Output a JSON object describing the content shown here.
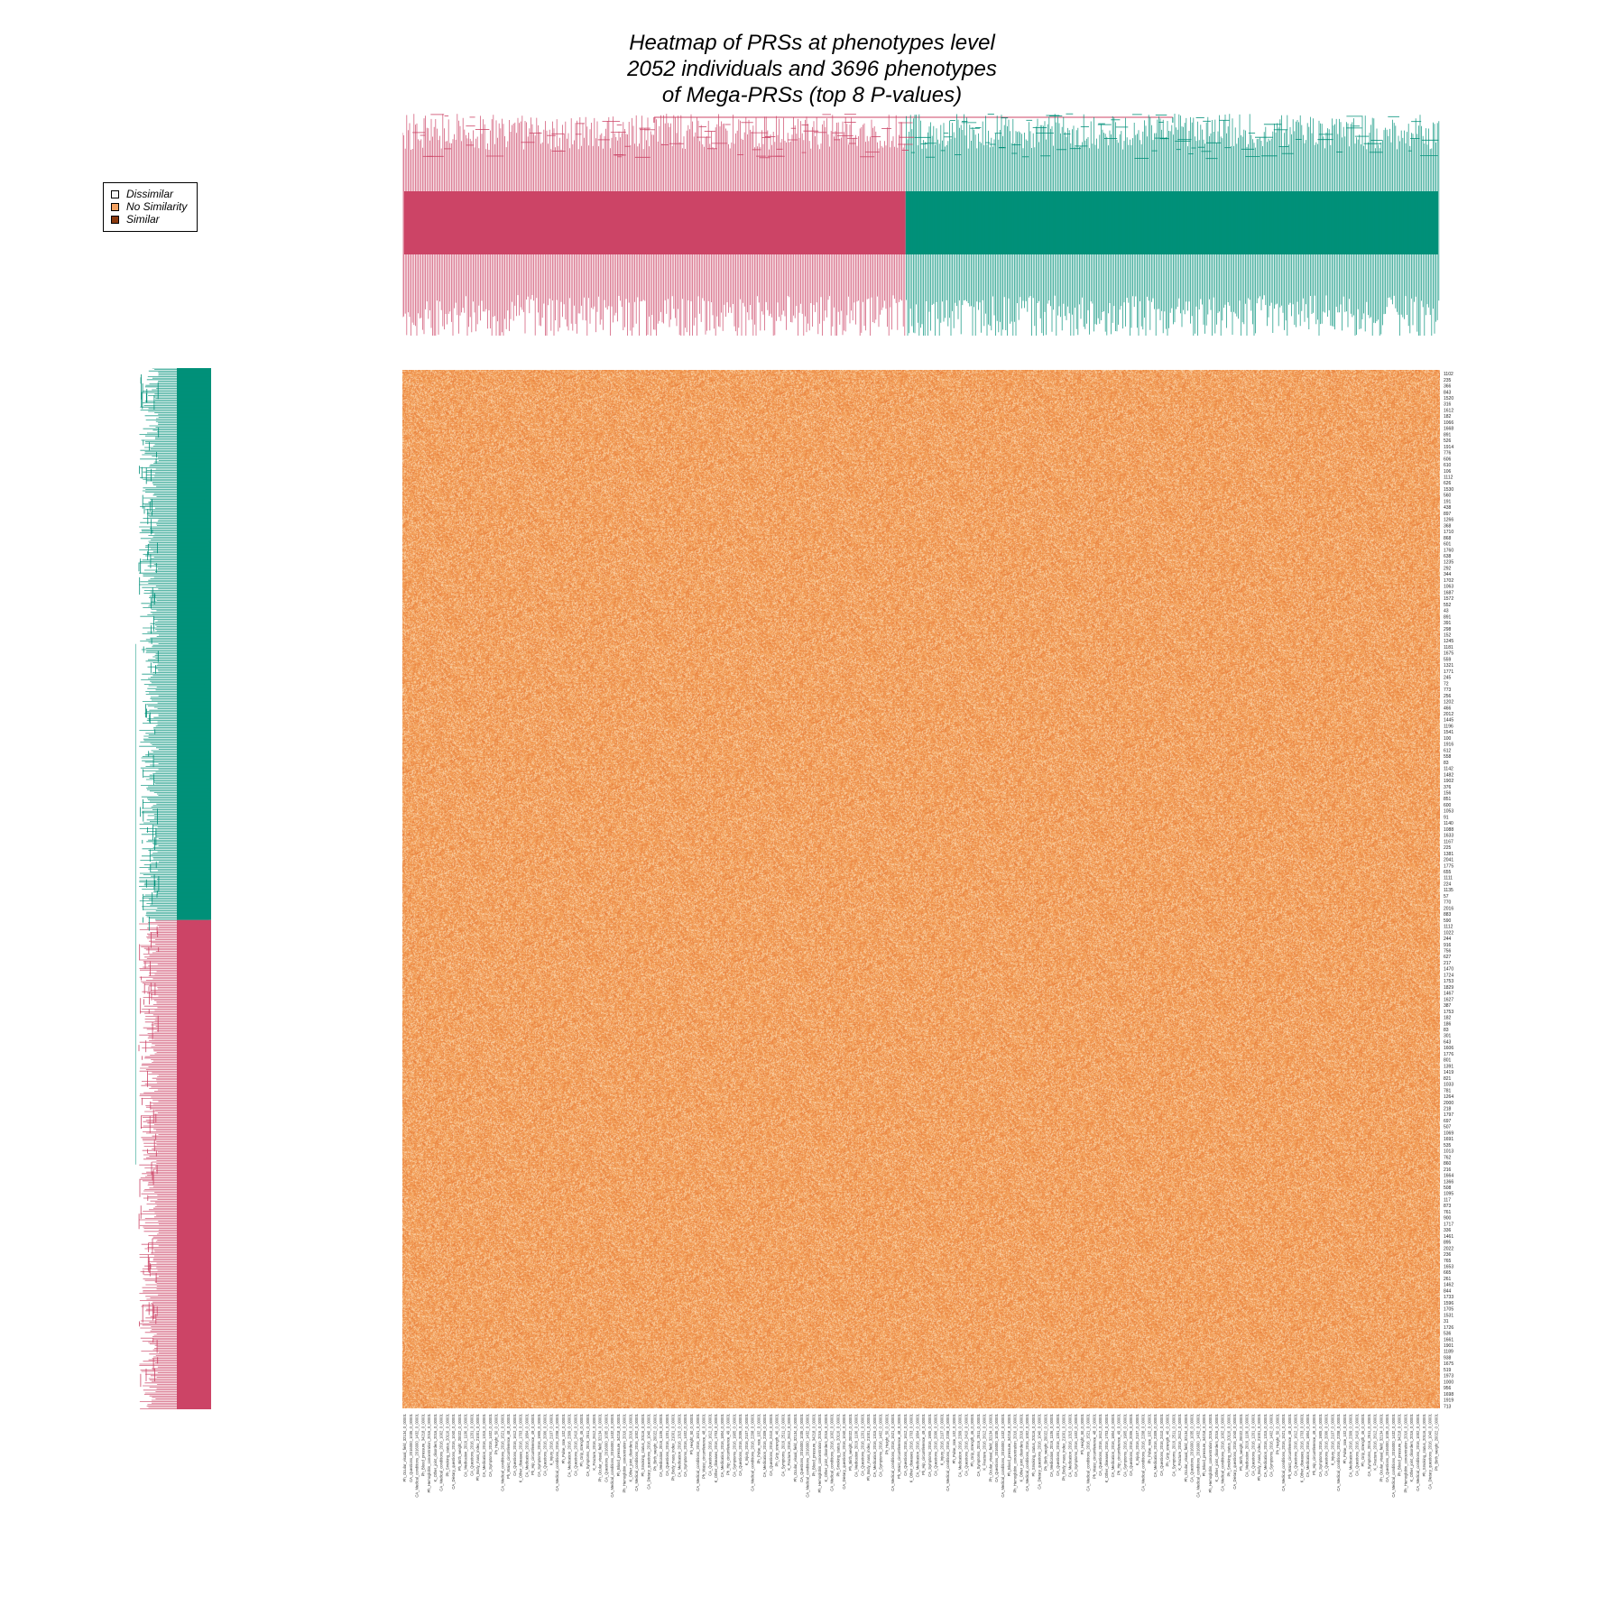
{
  "title": {
    "line1": "Heatmap of PRSs at phenotypes level",
    "line2": "2052 individuals and 3696 phenotypes",
    "line3": "of Mega-PRSs (top 8 P-values)"
  },
  "legend": {
    "items": [
      {
        "label": "Dissimilar",
        "color": "#f7f7f7"
      },
      {
        "label": "No Similarity",
        "color": "#f4a261"
      },
      {
        "label": "Similar",
        "color": "#8b3a0f"
      }
    ]
  },
  "colors": {
    "cluster_a": "#cc4466",
    "cluster_b": "#009079",
    "heat_base": "#f4a560",
    "heat_light": "#f8c896",
    "heat_dark": "#e8894a"
  },
  "chart_data": {
    "type": "heatmap",
    "n_individuals": 2052,
    "n_phenotypes": 3696,
    "column_dendrogram_clusters": [
      {
        "color": "#cc4466",
        "fraction": 0.485
      },
      {
        "color": "#009079",
        "fraction": 0.515
      }
    ],
    "row_dendrogram_clusters": [
      {
        "color": "#009079",
        "fraction": 0.53
      },
      {
        "color": "#cc4466",
        "fraction": 0.47
      }
    ],
    "row_labels": [
      "1102",
      "235",
      "366",
      "843",
      "1520",
      "316",
      "1612",
      "182",
      "1066",
      "1668",
      "891",
      "526",
      "1914",
      "776",
      "606",
      "610",
      "106",
      "1112",
      "626",
      "1530",
      "560",
      "191",
      "438",
      "897",
      "1266",
      "368",
      "1710",
      "868",
      "601",
      "1760",
      "638",
      "1235",
      "292",
      "344",
      "1702",
      "1063",
      "1687",
      "1572",
      "552",
      "43",
      "891",
      "391",
      "298",
      "152",
      "1245",
      "1181",
      "1675",
      "559",
      "1321",
      "1771",
      "245",
      "72",
      "773",
      "256",
      "1202",
      "466",
      "2012",
      "1445",
      "1196",
      "1541",
      "100",
      "1916",
      "612",
      "558",
      "83",
      "1142",
      "1482",
      "1902",
      "376",
      "156",
      "851",
      "600",
      "1053",
      "91",
      "1140",
      "1088",
      "1633",
      "1167",
      "225",
      "1381",
      "2041",
      "1775",
      "655",
      "1111",
      "224",
      "1135",
      "57",
      "770",
      "2016",
      "883",
      "590",
      "1112",
      "1022",
      "244",
      "916",
      "756",
      "627",
      "217",
      "1470",
      "1724",
      "1753",
      "1829",
      "1467",
      "1627",
      "387",
      "1753",
      "182",
      "186",
      "83",
      "301",
      "643",
      "1606",
      "1776",
      "801",
      "1391",
      "1419",
      "821",
      "1033",
      "781",
      "1264",
      "2000",
      "218",
      "1797",
      "697",
      "507",
      "1069",
      "1691",
      "535",
      "1013",
      "762",
      "860",
      "216",
      "1664",
      "1366",
      "508",
      "1095",
      "117",
      "873",
      "761",
      "900",
      "1717",
      "336",
      "1461",
      "895",
      "2022",
      "236",
      "765",
      "1653",
      "665",
      "261",
      "1462",
      "844",
      "1733",
      "1596",
      "1705",
      "1531",
      "31",
      "1726",
      "536",
      "1661",
      "1901",
      "1189",
      "938",
      "1675",
      "519",
      "1973",
      "1000",
      "956",
      "1698",
      "1919",
      "713"
    ],
    "column_labels": [
      "Ph_Ocular_visual_field_32134_0_00001",
      "CA_Questions_2016000_1035_0_00001",
      "CA_Medical_conditions_2016000_1432_0_00001",
      "Ph_Blood_pressure_34218_0_00001",
      "Ph_Hemoglobin_concentration_2016_0_00001",
      "K_Other_joint_disorders_2016_0_00001",
      "CA_Medical_conditions_2016_1002_0_00001",
      "Ph_Smoking_status_20116_0_00001",
      "CA_Dietary_questions_2016_1040_0_00001",
      "Ph_Birth_weight_20022_0_00001",
      "CA_Medication_2016_1106_0_00001",
      "CA_Questions_2016_1201_0_00001",
      "Ph_Body_mass_index_21001_0_00001",
      "CA_Medication_2016_1315_0_00001",
      "CA_Symptoms_2016_1402_0_00001",
      "Ph_Height_50_0_00001",
      "CA_Medical_conditions_2016_1521_0_00001",
      "Ph_Waist_circumference_48_0_00001",
      "CA_Questions_2016_1612_0_00001",
      "K_Other_diseases_2016_1703_0_00001",
      "CA_Medication_2016_1804_0_00001",
      "Ph_Hip_circumference_49_0_00001",
      "CA_Symptoms_2016_1905_0_00001",
      "CA_Questions_2016_2006_0_00001",
      "K_Injury_2016_2107_0_00001",
      "CA_Medical_conditions_2016_2208_0_00001",
      "Ph_Pulse_rate_102_0_00001",
      "CA_Medication_2016_2309_0_00001",
      "CA_Questions_2016_2410_0_00001",
      "Ph_Grip_strength_46_0_00001",
      "CA_Symptoms_2016_2511_0_00001",
      "K_Fracture_2016_2612_0_00001"
    ]
  }
}
